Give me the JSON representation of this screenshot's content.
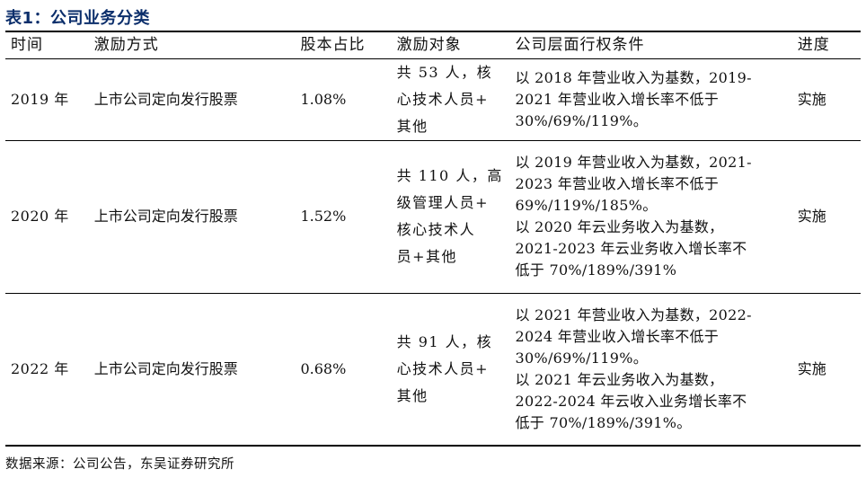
{
  "caption": "表1：公司业务分类",
  "columns": [
    "时间",
    "激励方式",
    "股本占比",
    "激励对象",
    "公司层面行权条件",
    "进度"
  ],
  "rows": [
    {
      "time": "2019 年",
      "method": "上市公司定向发行股票",
      "share": "1.08%",
      "subject": "共 53 人，核\n心技术人员+\n其他",
      "conditions": [
        "以 2018 年营业收入为基数，2019-",
        "2021 年营业收入增长率不低于",
        "30%/69%/119%。"
      ],
      "status": "实施"
    },
    {
      "time": "2020 年",
      "method": "上市公司定向发行股票",
      "share": "1.52%",
      "subject": "共 110 人，高\n级管理人员+\n核心技术人\n员+其他",
      "conditions": [
        "以 2019 年营业收入为基数，2021-",
        "2023 年营业收入增长率不低于",
        "69%/119%/185%。",
        "以 2020 年云业务收入为基数，",
        "2021-2023 年云业务收入增长率不",
        "低于 70%/189%/391%"
      ],
      "status": "实施"
    },
    {
      "time": "2022 年",
      "method": "上市公司定向发行股票",
      "share": "0.68%",
      "subject": "共 91 人，核\n心技术人员+\n其他",
      "conditions": [
        "以 2021 年营业收入为基数，2022-",
        "2024 年营业收入增长率不低于",
        "30%/69%/119%。",
        "以 2021 年云业务收入为基数，",
        "2022-2024 年云收入业务增长率不",
        "低于 70%/189%/391%。"
      ],
      "status": "实施"
    }
  ],
  "source": "数据来源：公司公告，东吴证券研究所"
}
